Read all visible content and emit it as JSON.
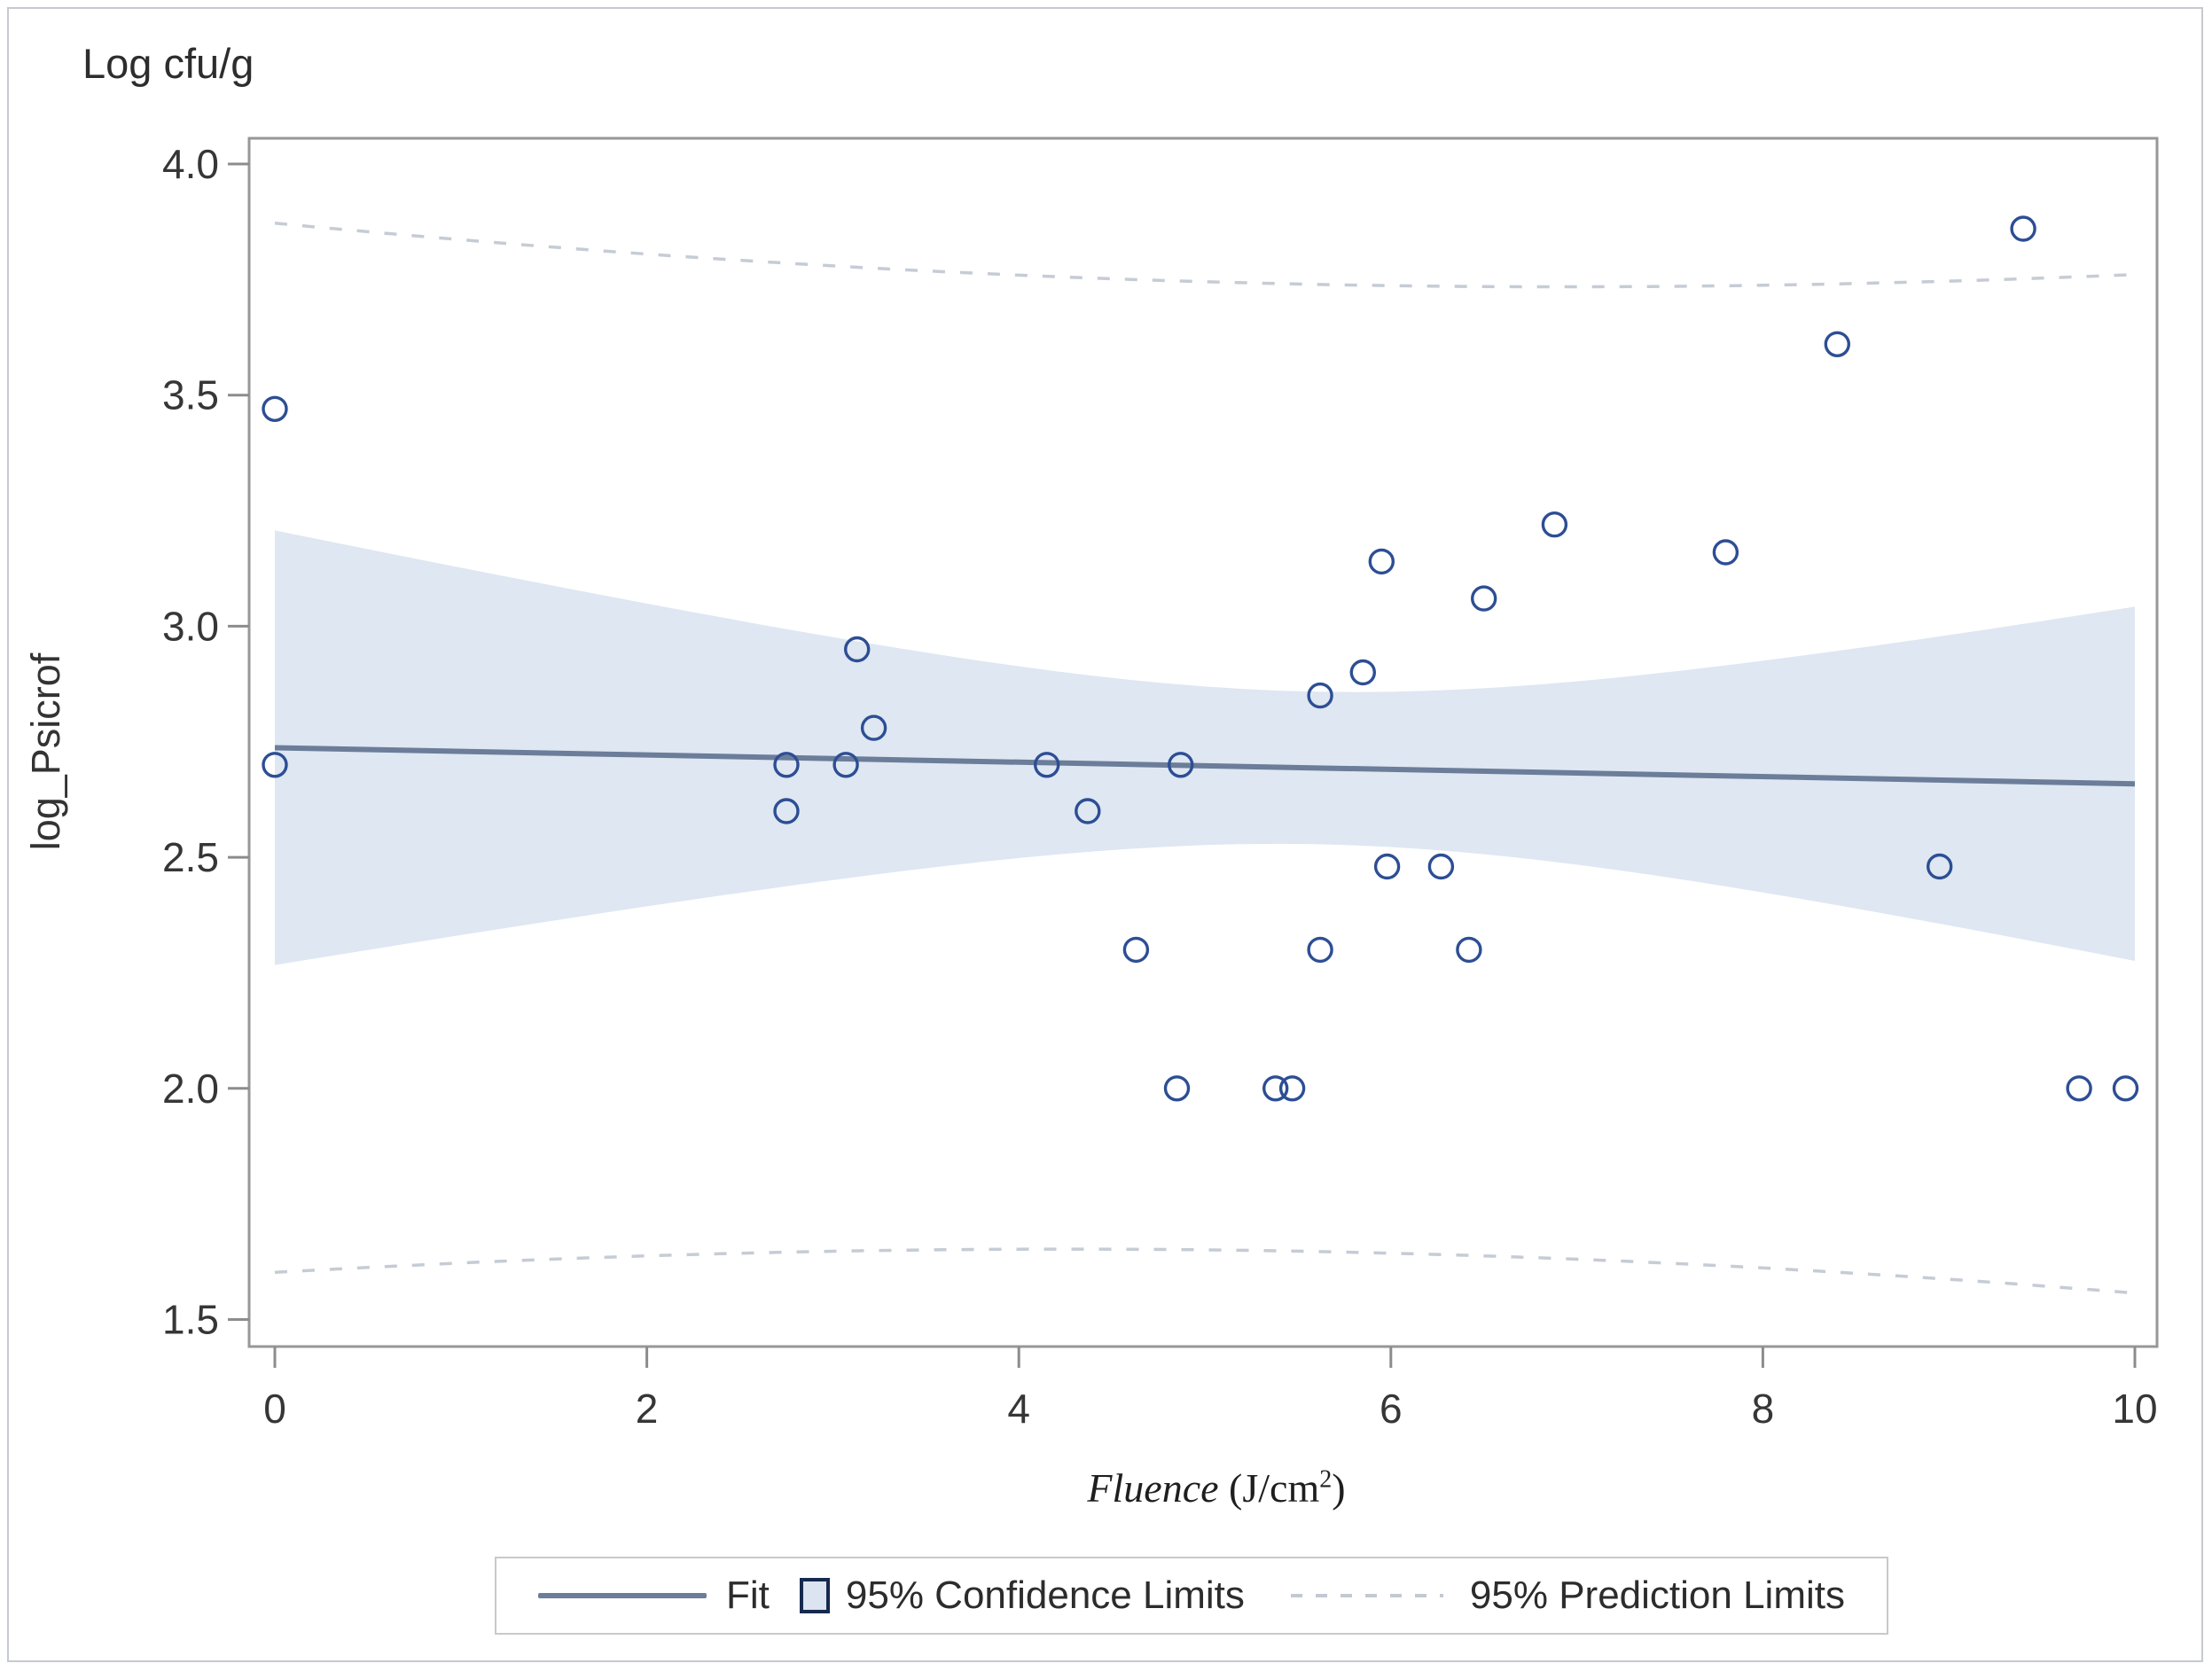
{
  "figure": {
    "title": "Log cfu/g"
  },
  "axes": {
    "x": {
      "label_italic": "Fluence",
      "label_unit_prefix": " (J/cm",
      "label_superscript": "2",
      "label_unit_suffix": ")",
      "tick_labels": [
        "0",
        "2",
        "4",
        "6",
        "8",
        "10"
      ],
      "tick_values": [
        0,
        2,
        4,
        6,
        8,
        10
      ]
    },
    "y": {
      "label": "log_Psicrof",
      "tick_labels": [
        "4.0",
        "3.5",
        "3.0",
        "2.5",
        "2.0",
        "1.5"
      ],
      "tick_values": [
        4.0,
        3.5,
        3.0,
        2.5,
        2.0,
        1.5
      ]
    }
  },
  "legend": {
    "fit_label": "Fit",
    "confidence_label": "95% Confidence Limits",
    "prediction_label": "95% Prediction Limits"
  },
  "chart_data": {
    "type": "scatter",
    "title": "Log cfu/g",
    "xlabel": "Fluence (J/cm2)",
    "ylabel": "log_Psicrof",
    "xlim": [
      -0.14,
      10.12
    ],
    "ylim": [
      1.43,
      4.05
    ],
    "grid": false,
    "legend_position": "bottom",
    "marker": "open-circle",
    "points": [
      [
        0,
        3.47
      ],
      [
        0,
        2.7
      ],
      [
        2.75,
        2.7
      ],
      [
        2.75,
        2.6
      ],
      [
        3.07,
        2.7
      ],
      [
        3.13,
        2.95
      ],
      [
        3.22,
        2.78
      ],
      [
        4.15,
        2.7
      ],
      [
        4.37,
        2.6
      ],
      [
        4.63,
        2.3
      ],
      [
        4.85,
        2.0
      ],
      [
        4.87,
        2.7
      ],
      [
        5.38,
        2.0
      ],
      [
        5.47,
        2.0
      ],
      [
        5.62,
        2.85
      ],
      [
        5.62,
        2.3
      ],
      [
        5.85,
        2.9
      ],
      [
        5.95,
        3.14
      ],
      [
        5.98,
        2.48
      ],
      [
        6.27,
        2.48
      ],
      [
        6.42,
        2.3
      ],
      [
        6.5,
        3.06
      ],
      [
        6.88,
        3.22
      ],
      [
        7.8,
        3.16
      ],
      [
        8.4,
        3.61
      ],
      [
        8.95,
        2.48
      ],
      [
        9.4,
        3.86
      ],
      [
        9.7,
        2.0
      ],
      [
        9.95,
        2.0
      ]
    ],
    "fit_line": {
      "model": "linear",
      "intercept": 2.737,
      "slope": -0.0078,
      "x_start": 0,
      "x_end": 10
    },
    "confidence_band": {
      "label": "95% Confidence Limits",
      "halfwidth_model": "sqrt(a + b*(x - xbar)^2)",
      "a": 0.0272,
      "b": 0.00618,
      "xbar": 5.6,
      "value_at_x0": [
        2.27,
        3.21
      ],
      "value_at_x10": [
        2.28,
        3.04
      ]
    },
    "prediction_band": {
      "label": "95% Prediction Limits",
      "halfwidth_model": "sqrt(c + a + b*(x - xbar)^2)",
      "c": 1.0673,
      "upper_at_x0": 3.87,
      "upper_at_x10": 3.76,
      "lower_at_x0": 1.6,
      "lower_at_x10": 1.55
    }
  },
  "colors": {
    "band_fill": "#dee7f2",
    "fit_line": "#6b7d99",
    "marker_stroke": "#2d4e94",
    "prediction_dash": "#c6ccd5",
    "frame": "#979797",
    "tick_mark": "#8c8c8c",
    "tick_text": "#363636"
  }
}
